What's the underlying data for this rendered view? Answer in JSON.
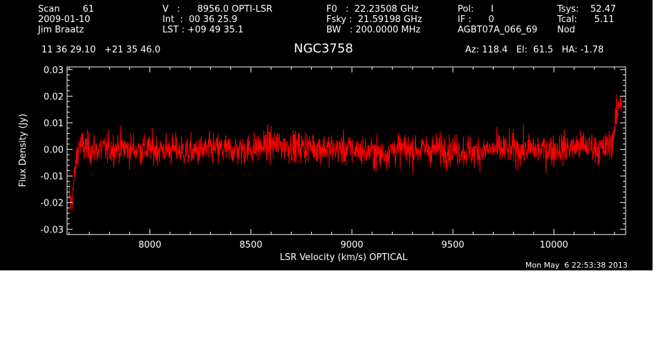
{
  "header": {
    "col1": {
      "line1": "Scan        61",
      "line2": "2009-01-10",
      "line3": "Jim Braatz"
    },
    "col2": {
      "line1": "V   :      8956.0 OPTI-LSR",
      "line2": "Int  :  00 36 25.9",
      "line3": "LST : +09 49 35.1"
    },
    "col3": {
      "line1": "F0   :  22.23508 GHz",
      "line2": "Fsky :  21.59198 GHz",
      "line3": "BW   : 200.0000 MHz"
    },
    "col4": {
      "line1": "Pol:      I",
      "line2": "IF :      0",
      "line3": "AGBT07A_066_69"
    },
    "col5": {
      "line1": "Tsys:    52.47",
      "line2": "Tcal:      5.11",
      "line3": "Nod"
    },
    "coords": "11 36 29.10   +21 35 46.0",
    "source": "NGC3758",
    "pointing": "Az: 118.4   El:  61.5   HA: -1.78",
    "timestamp": "Mon May  6 22:53:38 2013"
  },
  "colors": {
    "background": "#000000",
    "axes": "#ffffff",
    "trace": "#ff0000"
  },
  "chart_data": {
    "type": "line",
    "title": "NGC3758",
    "xlabel": "LSR Velocity (km/s) OPTICAL",
    "ylabel": "Flux Density (Jy)",
    "xlim": [
      7590,
      10355
    ],
    "ylim": [
      -0.032,
      0.031
    ],
    "x_ticks": [
      8000,
      8500,
      9000,
      9500,
      10000
    ],
    "y_ticks": [
      -0.03,
      -0.02,
      -0.01,
      0.0,
      0.01,
      0.02,
      0.03
    ],
    "x_tick_labels": [
      "8000",
      "8500",
      "9000",
      "9500",
      "10000"
    ],
    "y_tick_labels": [
      "-0.03",
      "-0.02",
      "-0.01",
      "0.00",
      "0.01",
      "0.02",
      "0.03"
    ],
    "grid": false,
    "series": [
      {
        "x": [
          7600,
          7610,
          7620,
          7630,
          7640,
          7650,
          7670,
          7700,
          7750,
          7800,
          7850,
          7900,
          7950,
          8000,
          8100,
          8200,
          8300,
          8400,
          8500,
          8600,
          8700,
          8800,
          8900,
          9000,
          9100,
          9150,
          9200,
          9300,
          9400,
          9500,
          9600,
          9700,
          9800,
          9900,
          10000,
          10100,
          10150,
          10200,
          10230,
          10250,
          10270,
          10290,
          10300,
          10310,
          10320,
          10330
        ],
        "y": [
          -0.016,
          -0.021,
          -0.015,
          -0.008,
          -0.002,
          0.002,
          0.001,
          0.0,
          0.0,
          0.0,
          0.001,
          0.0,
          0.0,
          0.0,
          0.0,
          -0.001,
          0.0,
          0.0,
          0.0,
          0.002,
          0.001,
          0.001,
          0.0,
          0.0,
          -0.001,
          -0.002,
          0.0,
          0.0,
          0.0,
          0.0,
          -0.001,
          0.0,
          0.0,
          0.0,
          0.0,
          0.001,
          0.001,
          0.001,
          0.0,
          0.0,
          0.001,
          0.004,
          0.008,
          0.012,
          0.016,
          0.019
        ]
      }
    ]
  }
}
